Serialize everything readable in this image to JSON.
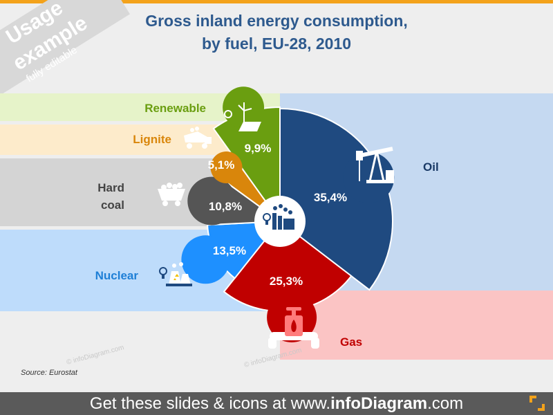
{
  "title_line1": "Gross inland energy consumption,",
  "title_line2": "by fuel, EU-28, 2010",
  "ribbon": {
    "line1": "Usage",
    "line2": "example",
    "line3": "fully editable"
  },
  "source": "Source:  Eurostat",
  "footer": {
    "prefix": "Get these slides & icons at www.",
    "brand": "infoDiagram",
    "suffix": ".com"
  },
  "watermark": "© infoDiagram.com",
  "colors": {
    "oil": "#1f4a80",
    "gas": "#c00000",
    "nuclear": "#1e90ff",
    "hard_coal": "#555555",
    "lignite": "#d9860b",
    "renewable": "#6a9e10"
  },
  "chart_data": {
    "type": "pie",
    "title": "Gross inland energy consumption, by fuel, EU-28, 2010",
    "unit": "%",
    "categories": [
      "Oil",
      "Gas",
      "Nuclear",
      "Hard coal",
      "Lignite",
      "Renewable"
    ],
    "values": [
      35.4,
      25.3,
      13.5,
      10.8,
      5.1,
      9.9
    ],
    "value_labels": [
      "35,4%",
      "25,3%",
      "13,5%",
      "10,8%",
      "5,1%",
      "9,9%"
    ],
    "icons": [
      "oil-pump-icon",
      "gas-valve-icon",
      "nuclear-plant-icon",
      "coal-cart-icon",
      "lignite-truck-icon",
      "renewable-icon"
    ],
    "center_icon": "power-plant-icon"
  }
}
